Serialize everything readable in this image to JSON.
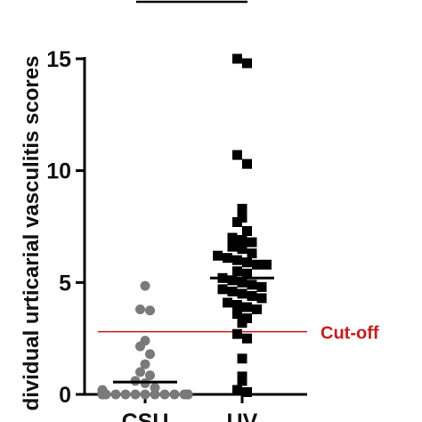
{
  "chart_data": {
    "type": "scatter",
    "ylabel": "dividual urticarial vasculitis scores",
    "ylim": [
      0,
      15
    ],
    "yticks": [
      "0",
      "5",
      "10",
      "15"
    ],
    "categories": [
      "CSU",
      "UV"
    ],
    "series": [
      {
        "category": "CSU",
        "marker": "circle",
        "color": "#7a7a7a",
        "mean": 0.55,
        "values": [
          4.85,
          3.8,
          3.75,
          2.4,
          2.15,
          1.8,
          1.35,
          1.0,
          0.85,
          0.6,
          0.5,
          0.3,
          0.2,
          0.15,
          0.1,
          0.05,
          0.05,
          0,
          0,
          0,
          0,
          0,
          0,
          0,
          0,
          0,
          0,
          0,
          0,
          0,
          0,
          0,
          0,
          0,
          0
        ]
      },
      {
        "category": "UV",
        "marker": "square",
        "color": "#000000",
        "mean": 5.2,
        "values": [
          15.0,
          14.8,
          10.7,
          10.3,
          8.3,
          7.9,
          7.7,
          7.3,
          7.0,
          6.9,
          6.8,
          6.6,
          6.5,
          6.3,
          6.2,
          6.1,
          6.0,
          5.9,
          5.8,
          5.8,
          5.5,
          5.4,
          5.2,
          5.1,
          5.0,
          4.9,
          4.8,
          4.7,
          4.6,
          4.5,
          4.4,
          4.3,
          4.1,
          4.0,
          3.9,
          3.8,
          3.6,
          3.4,
          3.2,
          2.7,
          2.5,
          1.6,
          0.8,
          0.6,
          0.2,
          0.1
        ]
      }
    ],
    "cutoff": {
      "value": 2.8,
      "label": "Cut-off",
      "color": "#cc1a1a"
    },
    "grid": false
  }
}
